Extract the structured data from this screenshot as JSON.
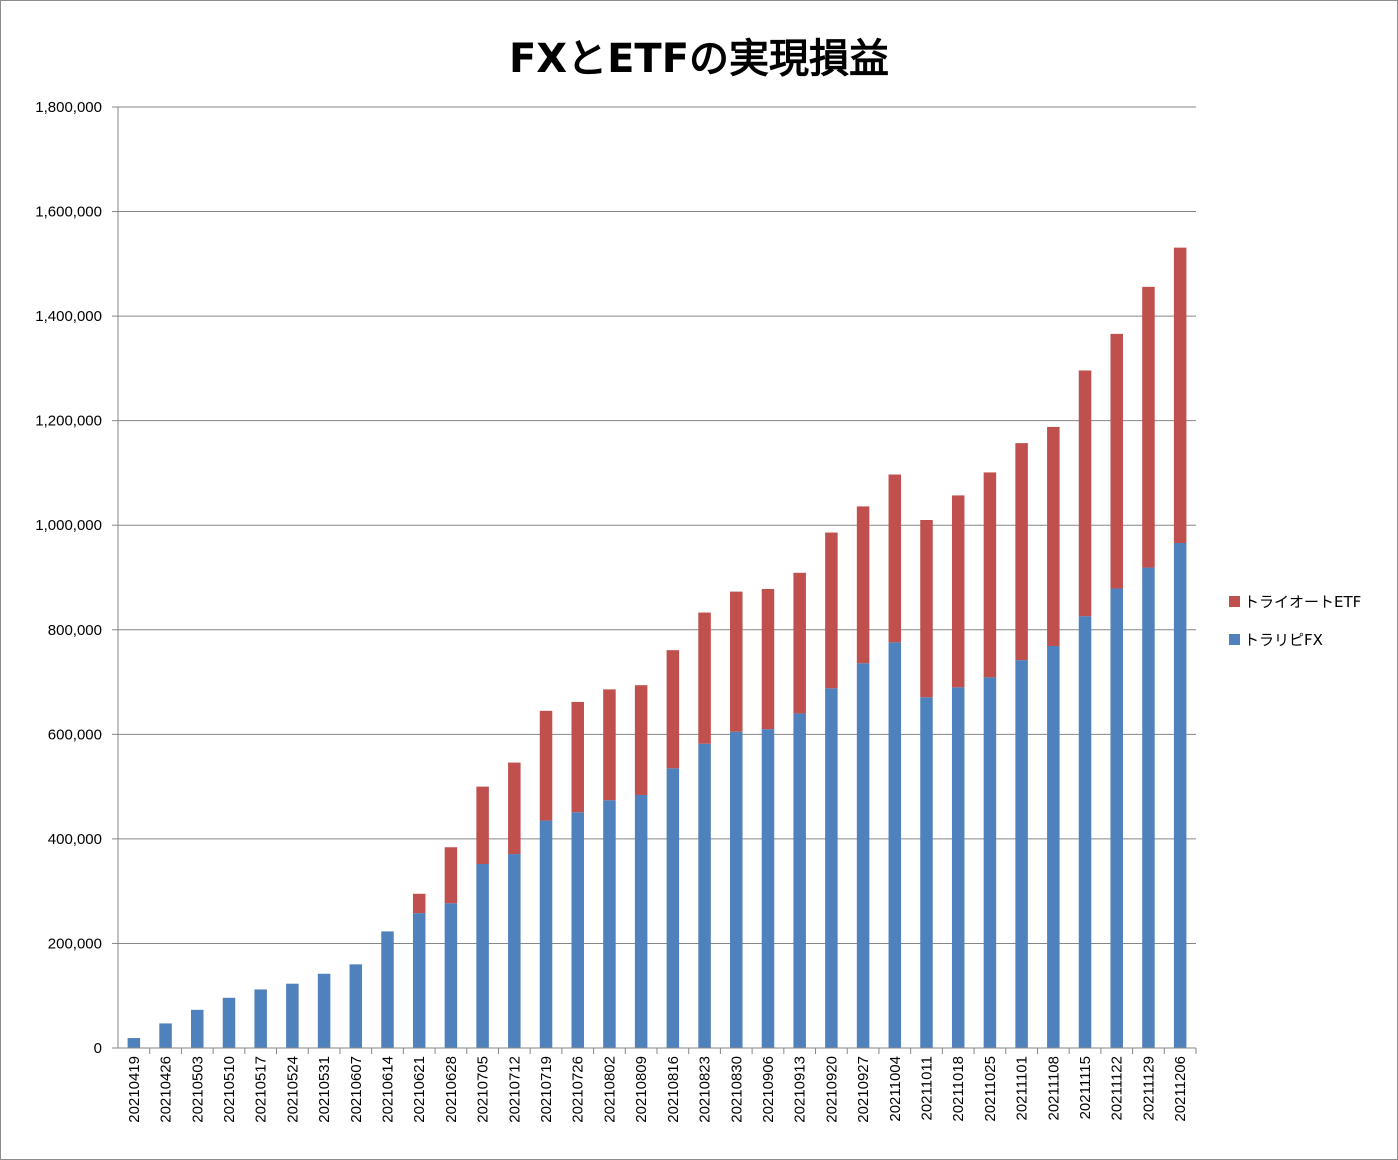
{
  "chart_data": {
    "type": "bar",
    "stacked": true,
    "title": "FXとETFの実現損益",
    "categories": [
      "20210419",
      "20210426",
      "20210503",
      "20210510",
      "20210517",
      "20210524",
      "20210531",
      "20210607",
      "20210614",
      "20210621",
      "20210628",
      "20210705",
      "20210712",
      "20210719",
      "20210726",
      "20210802",
      "20210809",
      "20210816",
      "20210823",
      "20210830",
      "20210906",
      "20210913",
      "20210920",
      "20210927",
      "20211004",
      "20211011",
      "20211018",
      "20211025",
      "20211101",
      "20211108",
      "20211115",
      "20211122",
      "20211129",
      "20211206"
    ],
    "series": [
      {
        "name": "トラリピFX",
        "color": "#4f81bd",
        "values": [
          19000,
          47000,
          73000,
          96000,
          112000,
          123000,
          142000,
          160000,
          223000,
          258000,
          277000,
          352000,
          371000,
          435000,
          451000,
          474000,
          484000,
          535000,
          582000,
          605000,
          610000,
          640000,
          688000,
          736000,
          776000,
          671000,
          690000,
          709000,
          742000,
          769000,
          826000,
          879000,
          919000,
          966000
        ]
      },
      {
        "name": "トライオートETF",
        "color": "#c0504d",
        "values": [
          0,
          0,
          0,
          0,
          0,
          0,
          0,
          0,
          0,
          37000,
          107000,
          148000,
          175000,
          210000,
          211000,
          212000,
          210000,
          226000,
          251000,
          268000,
          268000,
          269000,
          298000,
          300000,
          321000,
          339000,
          367000,
          392000,
          415000,
          419000,
          470000,
          487000,
          537000,
          565000
        ]
      }
    ],
    "ylim": [
      0,
      1800000
    ],
    "yticks": [
      0,
      200000,
      400000,
      600000,
      800000,
      1000000,
      1200000,
      1400000,
      1600000,
      1800000
    ],
    "ytick_labels": [
      "0",
      "200,000",
      "400,000",
      "600,000",
      "800,000",
      "1,000,000",
      "1,200,000",
      "1,400,000",
      "1,600,000",
      "1,800,000"
    ],
    "grid": true,
    "legend": "right"
  }
}
